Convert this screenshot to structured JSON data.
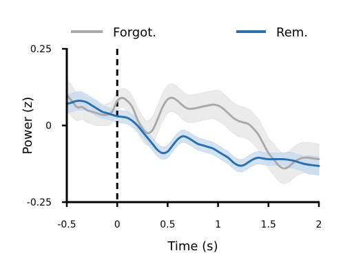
{
  "chart_data": {
    "type": "line",
    "title": "",
    "xlabel": "Time (s)",
    "ylabel": "Power (z)",
    "xlim": [
      -0.5,
      2
    ],
    "ylim": [
      -0.25,
      0.25
    ],
    "xticks": [
      -0.5,
      0,
      0.5,
      1,
      1.5,
      2
    ],
    "xtick_labels": [
      "-0.5",
      "0",
      "0.5",
      "1",
      "1.5",
      "2"
    ],
    "yticks": [
      -0.25,
      0,
      0.25
    ],
    "ytick_labels": [
      "-0.25",
      "0",
      "0.25"
    ],
    "grid": false,
    "legend_position": "top",
    "event_line": {
      "x": 0,
      "style": "dashed"
    },
    "series": [
      {
        "name": "Forgot.",
        "color": "#aaaaaa",
        "band_color": "#e4e4e4",
        "x": [
          -0.5,
          -0.45,
          -0.4,
          -0.35,
          -0.3,
          -0.25,
          -0.2,
          -0.15,
          -0.1,
          -0.05,
          0,
          0.05,
          0.1,
          0.15,
          0.2,
          0.25,
          0.3,
          0.35,
          0.4,
          0.45,
          0.5,
          0.55,
          0.6,
          0.65,
          0.7,
          0.75,
          0.8,
          0.85,
          0.9,
          0.95,
          1,
          1.05,
          1.1,
          1.15,
          1.2,
          1.25,
          1.3,
          1.35,
          1.4,
          1.45,
          1.5,
          1.55,
          1.6,
          1.65,
          1.7,
          1.75,
          1.8,
          1.85,
          1.9,
          1.95,
          2
        ],
        "y": [
          0.1,
          0.08,
          0.06,
          0.06,
          0.05,
          0.045,
          0.04,
          0.035,
          0.035,
          0.045,
          0.08,
          0.09,
          0.08,
          0.06,
          0.02,
          -0.01,
          -0.025,
          -0.015,
          0.02,
          0.06,
          0.085,
          0.09,
          0.08,
          0.065,
          0.055,
          0.055,
          0.058,
          0.062,
          0.065,
          0.068,
          0.065,
          0.055,
          0.04,
          0.025,
          0.015,
          0.01,
          0.005,
          -0.01,
          -0.03,
          -0.06,
          -0.09,
          -0.11,
          -0.13,
          -0.14,
          -0.135,
          -0.12,
          -0.11,
          -0.105,
          -0.105,
          -0.108,
          -0.11
        ],
        "ci": [
          0.05,
          0.05,
          0.045,
          0.04,
          0.04,
          0.04,
          0.04,
          0.035,
          0.035,
          0.035,
          0.03,
          0.03,
          0.035,
          0.035,
          0.04,
          0.04,
          0.04,
          0.045,
          0.045,
          0.045,
          0.045,
          0.045,
          0.045,
          0.045,
          0.045,
          0.045,
          0.045,
          0.045,
          0.045,
          0.045,
          0.05,
          0.05,
          0.05,
          0.05,
          0.05,
          0.05,
          0.05,
          0.05,
          0.05,
          0.05,
          0.05,
          0.05,
          0.05,
          0.05,
          0.05,
          0.05,
          0.05,
          0.05,
          0.05,
          0.05,
          0.05
        ]
      },
      {
        "name": "Rem.",
        "color": "#2a6fb0",
        "band_color": "#c5daf0",
        "x": [
          -0.5,
          -0.45,
          -0.4,
          -0.35,
          -0.3,
          -0.25,
          -0.2,
          -0.15,
          -0.1,
          -0.05,
          0,
          0.05,
          0.1,
          0.15,
          0.2,
          0.25,
          0.3,
          0.35,
          0.4,
          0.45,
          0.5,
          0.55,
          0.6,
          0.65,
          0.7,
          0.75,
          0.8,
          0.85,
          0.9,
          0.95,
          1,
          1.05,
          1.1,
          1.15,
          1.2,
          1.25,
          1.3,
          1.35,
          1.4,
          1.45,
          1.5,
          1.55,
          1.6,
          1.65,
          1.7,
          1.75,
          1.8,
          1.85,
          1.9,
          1.95,
          2
        ],
        "y": [
          0.07,
          0.075,
          0.08,
          0.08,
          0.075,
          0.065,
          0.055,
          0.045,
          0.04,
          0.035,
          0.03,
          0.028,
          0.025,
          0.015,
          0.0,
          -0.02,
          -0.04,
          -0.06,
          -0.08,
          -0.09,
          -0.085,
          -0.065,
          -0.045,
          -0.035,
          -0.04,
          -0.05,
          -0.06,
          -0.065,
          -0.07,
          -0.075,
          -0.085,
          -0.095,
          -0.105,
          -0.12,
          -0.13,
          -0.13,
          -0.12,
          -0.11,
          -0.105,
          -0.108,
          -0.11,
          -0.11,
          -0.11,
          -0.11,
          -0.112,
          -0.115,
          -0.12,
          -0.125,
          -0.128,
          -0.13,
          -0.132
        ],
        "ci": [
          0.03,
          0.03,
          0.03,
          0.03,
          0.025,
          0.025,
          0.025,
          0.02,
          0.02,
          0.02,
          0.02,
          0.02,
          0.02,
          0.02,
          0.02,
          0.02,
          0.02,
          0.02,
          0.02,
          0.02,
          0.02,
          0.02,
          0.02,
          0.02,
          0.02,
          0.02,
          0.02,
          0.02,
          0.02,
          0.02,
          0.02,
          0.02,
          0.02,
          0.02,
          0.02,
          0.02,
          0.02,
          0.02,
          0.02,
          0.02,
          0.02,
          0.02,
          0.02,
          0.02,
          0.025,
          0.025,
          0.025,
          0.025,
          0.03,
          0.03,
          0.03
        ]
      }
    ]
  }
}
